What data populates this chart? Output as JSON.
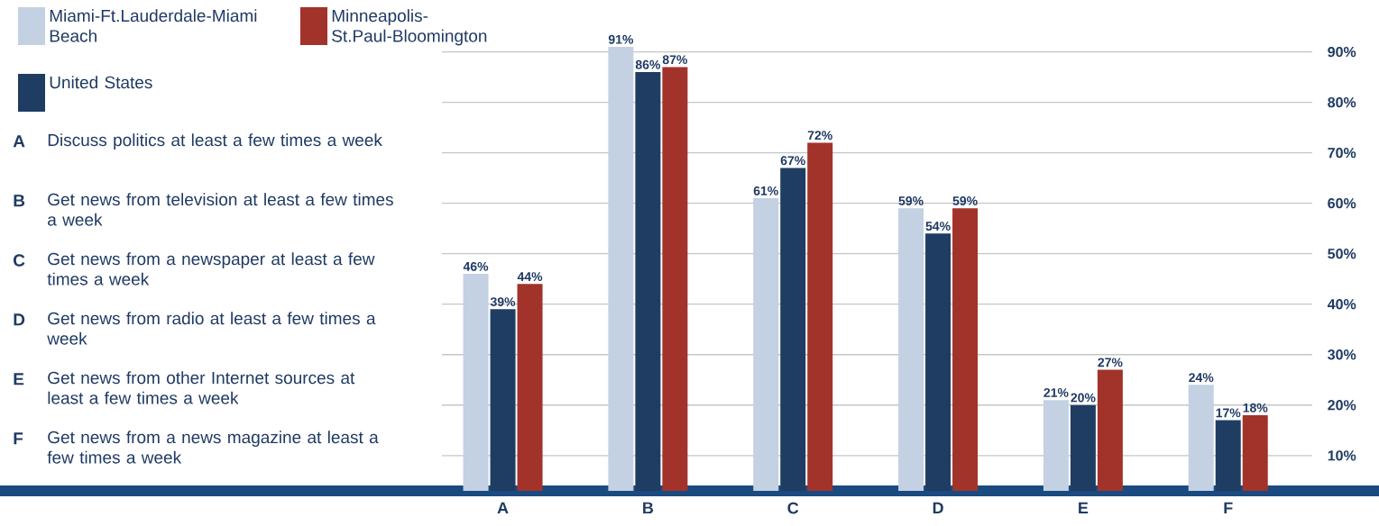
{
  "chart_data": {
    "type": "bar",
    "categories": [
      "A",
      "B",
      "C",
      "D",
      "E",
      "F"
    ],
    "series": [
      {
        "name": "Miami-Ft.Lauderdale-Miami Beach",
        "color": "#c3d1e2",
        "values": [
          46,
          91,
          61,
          59,
          21,
          24
        ],
        "value_labels": [
          "46%",
          "91%",
          "61%",
          "59%",
          "21%",
          "24%"
        ]
      },
      {
        "name": "United States",
        "color": "#1f3d63",
        "values": [
          39,
          86,
          67,
          54,
          20,
          17
        ],
        "value_labels": [
          "39%",
          "86%",
          "67%",
          "54%",
          "20%",
          "17%"
        ]
      },
      {
        "name": "Minneapolis-St.Paul-Bloomington",
        "color": "#a2332a",
        "values": [
          44,
          87,
          72,
          59,
          27,
          18
        ],
        "value_labels": [
          "44%",
          "87%",
          "72%",
          "59%",
          "27%",
          "18%"
        ]
      }
    ],
    "ylim": [
      3,
      91
    ],
    "yticks": [
      {
        "value": 10,
        "label": "10%"
      },
      {
        "value": 20,
        "label": "20%"
      },
      {
        "value": 30,
        "label": "30%"
      },
      {
        "value": 40,
        "label": "40%"
      },
      {
        "value": 50,
        "label": "50%"
      },
      {
        "value": 60,
        "label": "60%"
      },
      {
        "value": 70,
        "label": "70%"
      },
      {
        "value": 80,
        "label": "80%"
      },
      {
        "value": 90,
        "label": "90%"
      }
    ],
    "grid": "y",
    "legend": "top left",
    "annotations": [
      "Discuss politics at least a few times a week",
      "Get news from television at least a few times a week",
      "Get news from a newspaper at least a few times a week",
      "Get news from radio at least a few times a week",
      "Get news from other Internet sources at least a few times a week",
      "Get news from a news magazine at least a few times a week"
    ]
  }
}
